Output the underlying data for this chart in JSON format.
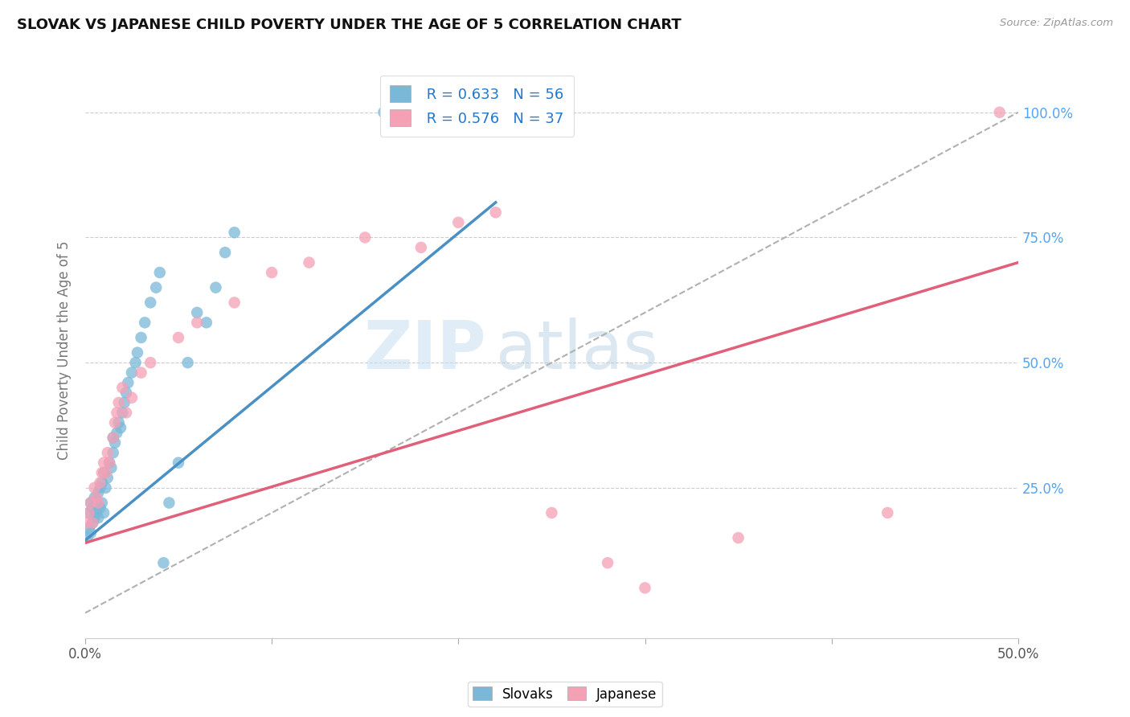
{
  "title": "SLOVAK VS JAPANESE CHILD POVERTY UNDER THE AGE OF 5 CORRELATION CHART",
  "source": "Source: ZipAtlas.com",
  "ylabel": "Child Poverty Under the Age of 5",
  "xlim": [
    0,
    0.5
  ],
  "ylim": [
    -0.05,
    1.1
  ],
  "xtick_vals": [
    0.0,
    0.1,
    0.2,
    0.3,
    0.4,
    0.5
  ],
  "ytick_vals": [
    0.25,
    0.5,
    0.75,
    1.0
  ],
  "ytick_labels": [
    "25.0%",
    "50.0%",
    "75.0%",
    "100.0%"
  ],
  "slovak_color": "#7ab8d9",
  "japanese_color": "#f4a0b5",
  "slovak_line_color": "#4a90c4",
  "japanese_line_color": "#e0607a",
  "diagonal_color": "#b0b0b0",
  "watermark_zip": "ZIP",
  "watermark_atlas": "atlas",
  "legend_R_slovak": "R = 0.633",
  "legend_N_slovak": "N = 56",
  "legend_R_japanese": "R = 0.576",
  "legend_N_japanese": "N = 37",
  "sk_x": [
    0.001,
    0.002,
    0.002,
    0.003,
    0.003,
    0.004,
    0.004,
    0.005,
    0.005,
    0.006,
    0.006,
    0.007,
    0.007,
    0.008,
    0.008,
    0.009,
    0.009,
    0.01,
    0.01,
    0.011,
    0.012,
    0.013,
    0.014,
    0.015,
    0.015,
    0.016,
    0.017,
    0.018,
    0.019,
    0.02,
    0.021,
    0.022,
    0.023,
    0.025,
    0.027,
    0.028,
    0.03,
    0.032,
    0.035,
    0.038,
    0.04,
    0.042,
    0.045,
    0.05,
    0.055,
    0.06,
    0.065,
    0.07,
    0.075,
    0.08,
    0.16,
    0.17,
    0.175,
    0.18,
    0.19,
    0.2
  ],
  "sk_y": [
    0.15,
    0.17,
    0.2,
    0.16,
    0.22,
    0.18,
    0.21,
    0.19,
    0.23,
    0.2,
    0.22,
    0.19,
    0.24,
    0.21,
    0.25,
    0.22,
    0.26,
    0.2,
    0.28,
    0.25,
    0.27,
    0.3,
    0.29,
    0.32,
    0.35,
    0.34,
    0.36,
    0.38,
    0.37,
    0.4,
    0.42,
    0.44,
    0.46,
    0.48,
    0.5,
    0.52,
    0.55,
    0.58,
    0.62,
    0.65,
    0.68,
    0.1,
    0.22,
    0.3,
    0.5,
    0.6,
    0.58,
    0.65,
    0.72,
    0.76,
    1.0,
    1.0,
    0.98,
    1.0,
    1.0,
    1.0
  ],
  "jp_x": [
    0.001,
    0.002,
    0.003,
    0.004,
    0.005,
    0.006,
    0.007,
    0.008,
    0.009,
    0.01,
    0.011,
    0.012,
    0.013,
    0.015,
    0.016,
    0.017,
    0.018,
    0.02,
    0.022,
    0.025,
    0.03,
    0.035,
    0.05,
    0.06,
    0.08,
    0.1,
    0.12,
    0.15,
    0.18,
    0.2,
    0.22,
    0.25,
    0.28,
    0.3,
    0.35,
    0.43,
    0.49
  ],
  "jp_y": [
    0.18,
    0.2,
    0.22,
    0.18,
    0.25,
    0.23,
    0.22,
    0.26,
    0.28,
    0.3,
    0.28,
    0.32,
    0.3,
    0.35,
    0.38,
    0.4,
    0.42,
    0.45,
    0.4,
    0.43,
    0.48,
    0.5,
    0.55,
    0.58,
    0.62,
    0.68,
    0.7,
    0.75,
    0.73,
    0.78,
    0.8,
    0.2,
    0.1,
    0.05,
    0.15,
    0.2,
    1.0
  ],
  "sk_line_x": [
    0.0,
    0.22
  ],
  "sk_line_y": [
    0.145,
    0.82
  ],
  "jp_line_x": [
    0.0,
    0.5
  ],
  "jp_line_y": [
    0.14,
    0.7
  ]
}
